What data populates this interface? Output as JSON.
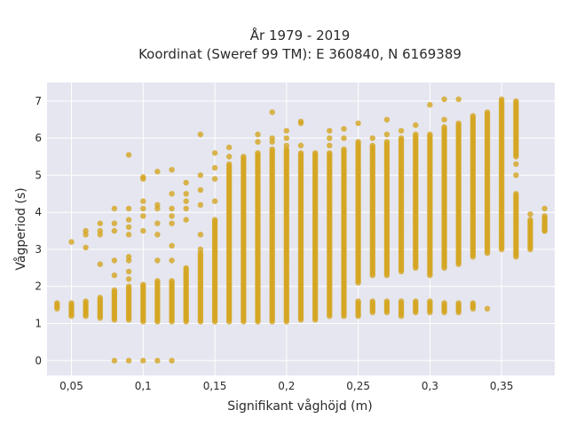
{
  "chart_data": {
    "type": "scatter",
    "title_line1": "År 1979 - 2019",
    "title_line2": "Koordinat (Sweref 99 TM): E 360840, N 6169389",
    "xlabel": "Signifikant våghöjd (m)",
    "ylabel": "Vågperiod (s)",
    "xlim": [
      0.033,
      0.387
    ],
    "ylim": [
      -0.4,
      7.5
    ],
    "x_ticks": [
      0.05,
      0.1,
      0.15,
      0.2,
      0.25,
      0.3,
      0.35
    ],
    "x_tick_labels": [
      "0,05",
      "0,1",
      "0,15",
      "0,2",
      "0,25",
      "0,3",
      "0,35"
    ],
    "y_ticks": [
      0,
      1,
      2,
      3,
      4,
      5,
      6,
      7
    ],
    "y_tick_labels": [
      "0",
      "1",
      "2",
      "3",
      "4",
      "5",
      "6",
      "7"
    ],
    "grid": true,
    "background": "#e5e6ef",
    "marker_color": "#d4a520",
    "point_columns": [
      {
        "x": 0.04,
        "ranges": [
          [
            1.4,
            1.55
          ]
        ],
        "extras": []
      },
      {
        "x": 0.05,
        "ranges": [
          [
            1.2,
            1.55
          ]
        ],
        "extras": [
          3.2
        ]
      },
      {
        "x": 0.06,
        "ranges": [
          [
            1.2,
            1.6
          ]
        ],
        "extras": [
          3.05,
          3.4,
          3.5
        ]
      },
      {
        "x": 0.07,
        "ranges": [
          [
            1.15,
            1.7
          ]
        ],
        "extras": [
          2.6,
          3.4,
          3.5,
          3.7
        ]
      },
      {
        "x": 0.08,
        "ranges": [
          [
            1.1,
            1.9
          ]
        ],
        "extras": [
          0,
          2.3,
          2.7,
          3.5,
          3.7,
          4.1
        ]
      },
      {
        "x": 0.09,
        "ranges": [
          [
            1.1,
            2.0
          ]
        ],
        "extras": [
          0,
          2.2,
          2.4,
          2.7,
          2.8,
          3.4,
          3.6,
          3.8,
          4.1,
          5.55
        ]
      },
      {
        "x": 0.1,
        "ranges": [
          [
            1.05,
            2.05
          ]
        ],
        "extras": [
          0,
          3.5,
          3.9,
          4.1,
          4.3,
          4.9,
          4.95
        ]
      },
      {
        "x": 0.11,
        "ranges": [
          [
            1.05,
            2.15
          ]
        ],
        "extras": [
          0,
          2.7,
          3.4,
          3.7,
          4.1,
          4.2,
          5.1
        ]
      },
      {
        "x": 0.12,
        "ranges": [
          [
            1.05,
            2.15
          ]
        ],
        "extras": [
          0,
          2.7,
          3.1,
          3.7,
          3.9,
          4.1,
          4.5,
          5.15
        ]
      },
      {
        "x": 0.13,
        "ranges": [
          [
            1.05,
            2.5
          ]
        ],
        "extras": [
          3.8,
          4.1,
          4.3,
          4.5,
          4.8
        ]
      },
      {
        "x": 0.14,
        "ranges": [
          [
            1.05,
            2.9
          ]
        ],
        "extras": [
          3.0,
          3.4,
          4.2,
          4.6,
          5.0,
          6.1
        ]
      },
      {
        "x": 0.15,
        "ranges": [
          [
            1.05,
            3.8
          ]
        ],
        "extras": [
          4.3,
          4.9,
          5.2,
          5.6
        ]
      },
      {
        "x": 0.16,
        "ranges": [
          [
            1.05,
            5.3
          ]
        ],
        "extras": [
          5.5,
          5.75
        ]
      },
      {
        "x": 0.17,
        "ranges": [
          [
            1.05,
            5.5
          ]
        ],
        "extras": []
      },
      {
        "x": 0.18,
        "ranges": [
          [
            1.05,
            5.6
          ]
        ],
        "extras": [
          5.9,
          6.1
        ]
      },
      {
        "x": 0.19,
        "ranges": [
          [
            1.05,
            5.7
          ]
        ],
        "extras": [
          5.9,
          6.0,
          6.7
        ]
      },
      {
        "x": 0.2,
        "ranges": [
          [
            1.05,
            5.7
          ]
        ],
        "extras": [
          5.8,
          6.0,
          6.2
        ]
      },
      {
        "x": 0.21,
        "ranges": [
          [
            1.1,
            5.6
          ]
        ],
        "extras": [
          5.8,
          6.4,
          6.45
        ]
      },
      {
        "x": 0.22,
        "ranges": [
          [
            1.1,
            5.6
          ]
        ],
        "extras": []
      },
      {
        "x": 0.23,
        "ranges": [
          [
            1.2,
            5.6
          ]
        ],
        "extras": [
          5.8,
          6.0,
          6.2
        ]
      },
      {
        "x": 0.24,
        "ranges": [
          [
            1.2,
            5.7
          ]
        ],
        "extras": [
          6.0,
          6.25
        ]
      },
      {
        "x": 0.25,
        "ranges": [
          [
            2.1,
            5.9
          ],
          [
            1.2,
            1.6
          ]
        ],
        "extras": [
          6.4
        ]
      },
      {
        "x": 0.26,
        "ranges": [
          [
            2.3,
            5.8
          ],
          [
            1.3,
            1.6
          ]
        ],
        "extras": [
          6.0
        ]
      },
      {
        "x": 0.27,
        "ranges": [
          [
            2.3,
            5.9
          ],
          [
            1.3,
            1.6
          ]
        ],
        "extras": [
          6.1,
          6.5
        ]
      },
      {
        "x": 0.28,
        "ranges": [
          [
            2.4,
            6.0
          ],
          [
            1.2,
            1.6
          ]
        ],
        "extras": [
          6.2
        ]
      },
      {
        "x": 0.29,
        "ranges": [
          [
            2.5,
            6.1
          ],
          [
            1.3,
            1.6
          ]
        ],
        "extras": [
          6.35
        ]
      },
      {
        "x": 0.3,
        "ranges": [
          [
            2.3,
            6.1
          ],
          [
            1.3,
            1.6
          ]
        ],
        "extras": [
          6.9
        ]
      },
      {
        "x": 0.31,
        "ranges": [
          [
            2.5,
            6.3
          ],
          [
            1.3,
            1.55
          ]
        ],
        "extras": [
          6.5,
          7.05
        ]
      },
      {
        "x": 0.32,
        "ranges": [
          [
            2.6,
            6.4
          ],
          [
            1.3,
            1.55
          ]
        ],
        "extras": [
          7.05
        ]
      },
      {
        "x": 0.33,
        "ranges": [
          [
            2.8,
            6.6
          ],
          [
            1.4,
            1.55
          ]
        ],
        "extras": []
      },
      {
        "x": 0.34,
        "ranges": [
          [
            2.9,
            6.7
          ]
        ],
        "extras": [
          1.4
        ]
      },
      {
        "x": 0.35,
        "ranges": [
          [
            3.0,
            7.05
          ]
        ],
        "extras": []
      },
      {
        "x": 0.36,
        "ranges": [
          [
            2.8,
            4.5
          ],
          [
            5.5,
            7.0
          ]
        ],
        "extras": [
          5.0,
          5.3
        ]
      },
      {
        "x": 0.37,
        "ranges": [
          [
            3.0,
            3.8
          ]
        ],
        "extras": [
          3.95
        ]
      },
      {
        "x": 0.38,
        "ranges": [
          [
            3.5,
            3.9
          ]
        ],
        "extras": [
          3.5,
          4.1
        ]
      }
    ]
  }
}
